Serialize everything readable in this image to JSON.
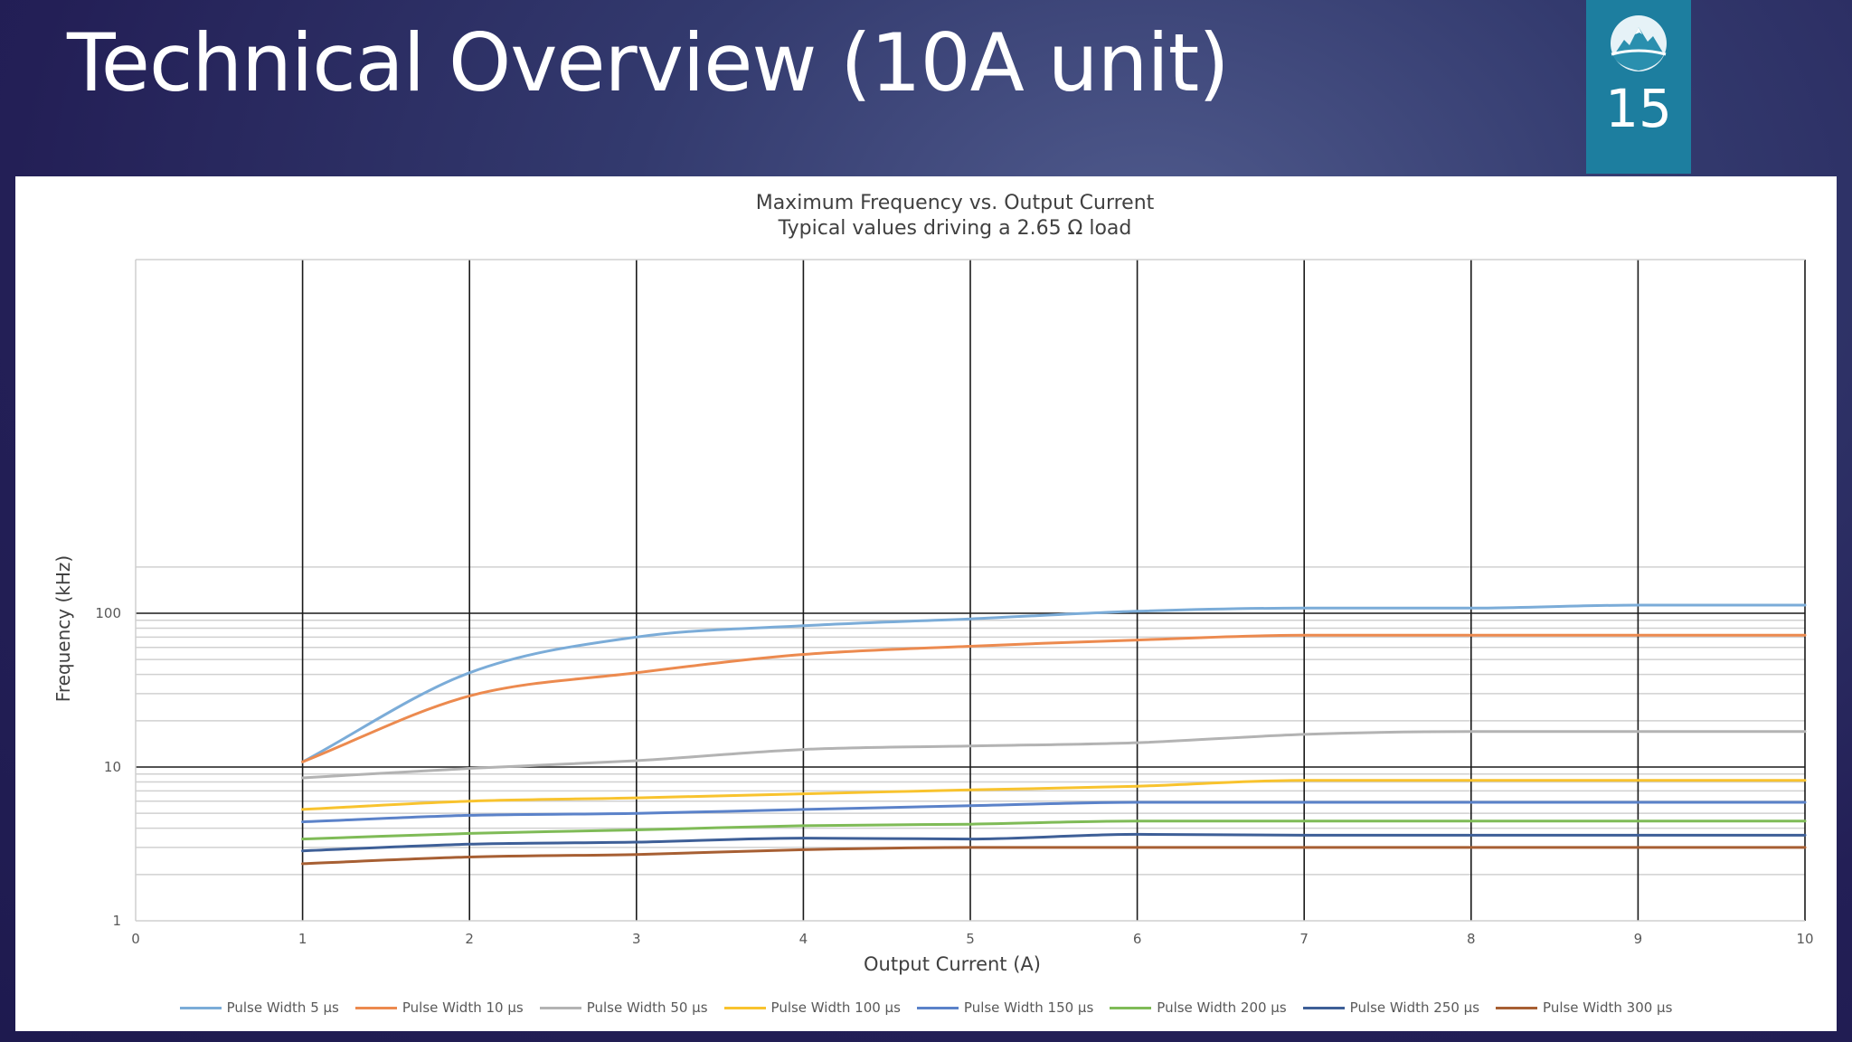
{
  "slide": {
    "title": "Technical Overview (10A unit)",
    "page_number": "15"
  },
  "chart_data": {
    "type": "line",
    "title": "Maximum Frequency vs. Output Current",
    "subtitle": "Typical values driving a 2.65 Ω load",
    "xlabel": "Output Current (A)",
    "ylabel": "Frequency (kHz)",
    "xlim": [
      0,
      10
    ],
    "ylim": [
      1,
      200
    ],
    "yscale": "log",
    "x_ticks": [
      "0",
      "1",
      "2",
      "3",
      "4",
      "5",
      "6",
      "7",
      "8",
      "9",
      "10"
    ],
    "y_ticks": [
      "1",
      "10",
      "100"
    ],
    "grid": true,
    "legend_position": "bottom",
    "x": [
      1,
      2,
      3,
      4,
      5,
      6,
      7,
      8,
      9,
      10
    ],
    "series": [
      {
        "name": "Pulse Width 5 µs",
        "color": "#7bacd8",
        "values": [
          10.8,
          41,
          70,
          83,
          92,
          103,
          108,
          108,
          113,
          113
        ]
      },
      {
        "name": "Pulse Width 10 µs",
        "color": "#ec8a4f",
        "values": [
          10.8,
          29,
          41,
          54,
          61,
          67,
          72,
          72,
          72,
          72
        ]
      },
      {
        "name": "Pulse Width 50 µs",
        "color": "#b3b3b3",
        "values": [
          8.5,
          9.8,
          11,
          13,
          13.7,
          14.4,
          16.3,
          17,
          17,
          17
        ]
      },
      {
        "name": "Pulse Width 100 µs",
        "color": "#f8c32e",
        "values": [
          5.3,
          6.0,
          6.3,
          6.7,
          7.1,
          7.5,
          8.2,
          8.2,
          8.2,
          8.2
        ]
      },
      {
        "name": "Pulse Width 150 µs",
        "color": "#5b82c9",
        "values": [
          4.4,
          4.85,
          5.0,
          5.3,
          5.6,
          5.9,
          5.9,
          5.9,
          5.9,
          5.9
        ]
      },
      {
        "name": "Pulse Width 200 µs",
        "color": "#7fbb57",
        "values": [
          3.4,
          3.7,
          3.9,
          4.15,
          4.25,
          4.45,
          4.45,
          4.45,
          4.45,
          4.45
        ]
      },
      {
        "name": "Pulse Width 250 µs",
        "color": "#3e5f97",
        "values": [
          2.85,
          3.15,
          3.25,
          3.45,
          3.4,
          3.65,
          3.6,
          3.6,
          3.6,
          3.6
        ]
      },
      {
        "name": "Pulse Width 300 µs",
        "color": "#a75f33",
        "values": [
          2.35,
          2.6,
          2.7,
          2.9,
          3.0,
          3.0,
          3.0,
          3.0,
          3.0,
          3.0
        ]
      }
    ]
  }
}
